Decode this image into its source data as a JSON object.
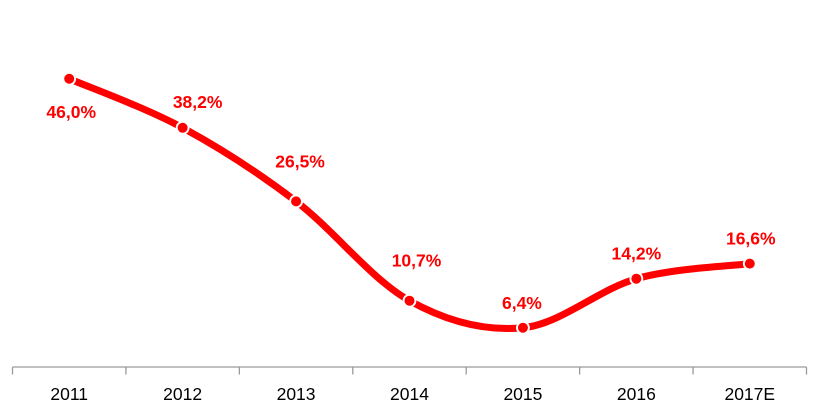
{
  "chart_data": {
    "type": "line",
    "title": "",
    "xlabel": "",
    "ylabel": "",
    "categories": [
      "2011",
      "2012",
      "2013",
      "2014",
      "2015",
      "2016",
      "2017E"
    ],
    "values": [
      46.0,
      38.2,
      26.5,
      10.7,
      6.4,
      14.2,
      16.6
    ],
    "point_labels": [
      "46,0%",
      "38,2%",
      "26,5%",
      "10,7%",
      "6,4%",
      "14,2%",
      "16,6%"
    ],
    "ylim": [
      0,
      58
    ],
    "grid": false,
    "legend": "none",
    "smooth": true,
    "markers": true,
    "colors": {
      "line": "#FF0000",
      "marker_fill": "#FF0000",
      "marker_halo": "#FFFFFF",
      "data_label": "#FF0000",
      "axis_line": "#9A9A9A",
      "category_label": "#000000",
      "background": "#FFFFFF"
    }
  }
}
